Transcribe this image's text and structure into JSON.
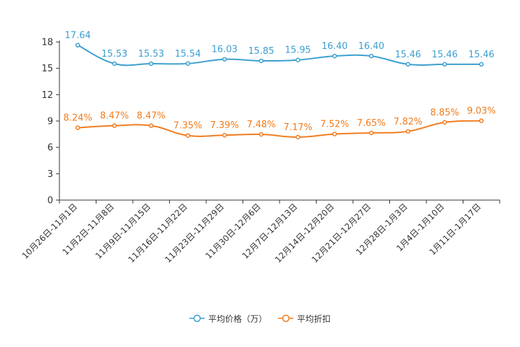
{
  "chart_data": {
    "type": "line",
    "title": "",
    "xlabel": "",
    "ylabel": "",
    "ylim": [
      0,
      18
    ],
    "yticks": [
      0,
      3,
      6,
      9,
      12,
      15,
      18
    ],
    "grid": false,
    "legend_position": "bottom",
    "categories": [
      "10月26日-11月1日",
      "11月2日-11月8日",
      "11月9日-11月15日",
      "11月16日-11月22日",
      "11月23日-11月29日",
      "11月30日-12月6日",
      "12月7日-12月13日",
      "12月14日-12月20日",
      "12月21日-12月27日",
      "12月28日-1月3日",
      "1月4日-1月10日",
      "1月11日-1月17日"
    ],
    "series": [
      {
        "name": "平均价格（万）",
        "color": "#3a9fd0",
        "values": [
          17.64,
          15.53,
          15.53,
          15.54,
          16.03,
          15.85,
          15.95,
          16.4,
          16.4,
          15.46,
          15.46,
          15.46
        ],
        "labels": [
          "17.64",
          "15.53",
          "15.53",
          "15.54",
          "16.03",
          "15.85",
          "15.95",
          "16.40",
          "16.40",
          "15.46",
          "15.46",
          "15.46"
        ]
      },
      {
        "name": "平均折扣",
        "color": "#f07c1e",
        "values": [
          8.24,
          8.47,
          8.47,
          7.35,
          7.39,
          7.48,
          7.17,
          7.52,
          7.65,
          7.82,
          8.85,
          9.03
        ],
        "labels": [
          "8.24%",
          "8.47%",
          "8.47%",
          "7.35%",
          "7.39%",
          "7.48%",
          "7.17%",
          "7.52%",
          "7.65%",
          "7.82%",
          "8.85%",
          "9.03%"
        ]
      }
    ]
  }
}
